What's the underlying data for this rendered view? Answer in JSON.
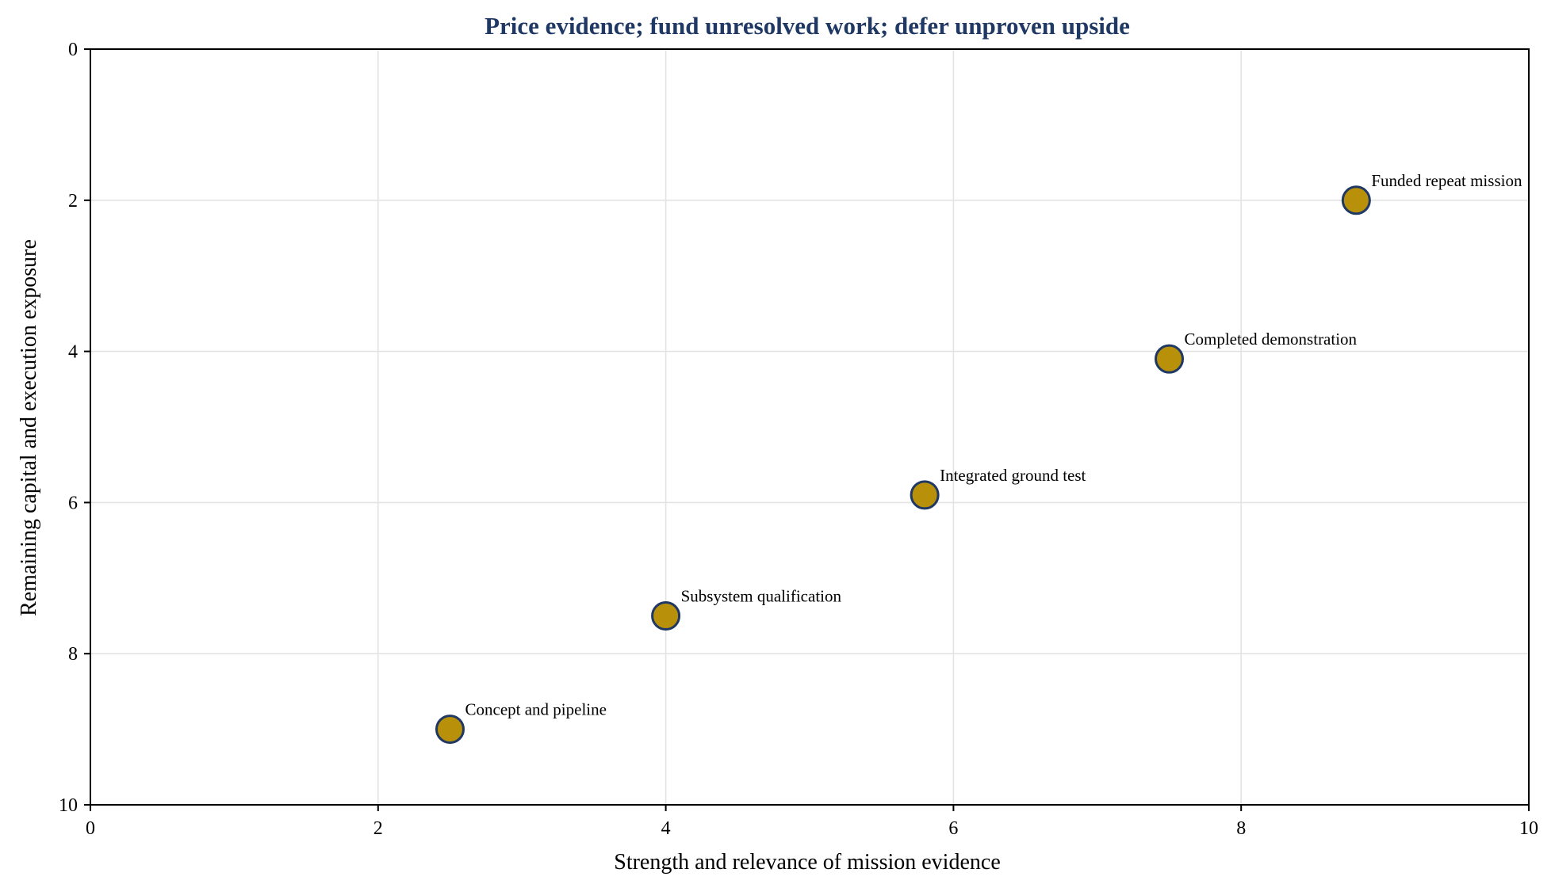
{
  "chart_data": {
    "type": "scatter",
    "title": "Price evidence; fund unresolved work; defer unproven upside",
    "xlabel": "Strength and relevance of mission evidence",
    "ylabel": "Remaining capital and execution exposure",
    "xlim": [
      0,
      10
    ],
    "ylim": [
      0,
      10
    ],
    "y_inverted": true,
    "xticks": [
      "0",
      "2",
      "4",
      "6",
      "8",
      "10"
    ],
    "yticks": [
      "0",
      "2",
      "4",
      "6",
      "8",
      "10"
    ],
    "grid": true,
    "legend": "none",
    "points": [
      {
        "label": "Concept and pipeline",
        "x": 2.5,
        "y": 9.0
      },
      {
        "label": "Subsystem qualification",
        "x": 4.0,
        "y": 7.5
      },
      {
        "label": "Integrated ground test",
        "x": 5.8,
        "y": 5.9
      },
      {
        "label": "Completed demonstration",
        "x": 7.5,
        "y": 4.1
      },
      {
        "label": "Funded repeat mission",
        "x": 8.8,
        "y": 2.0
      }
    ]
  },
  "colors": {
    "title": "#1f3864",
    "marker_fill": "#b8900a",
    "marker_edge": "#1f3864"
  }
}
